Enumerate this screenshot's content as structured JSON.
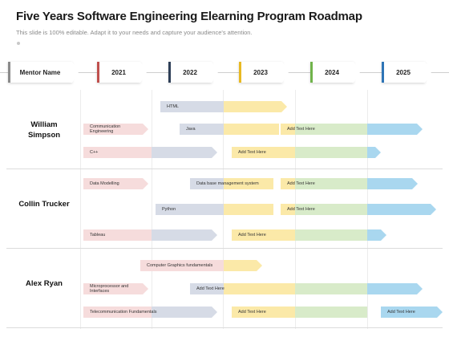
{
  "title": "Five Years Software Engineering Elearning Program Roadmap",
  "subtitle": "This slide is 100% editable. Adapt it to your needs and capture your audience's attention.",
  "colors": {
    "mentor": "#8a8a8a",
    "y2021": "#c0504d",
    "y2022": "#2f4058",
    "y2023": "#e8b923",
    "y2024": "#70b34b",
    "y2025": "#2e75b6"
  },
  "headers": {
    "mentor": "Mentor Name",
    "y2021": "2021",
    "y2022": "2022",
    "y2023": "2023",
    "y2024": "2024",
    "y2025": "2025"
  },
  "mentors": {
    "m1": "William Simpson",
    "m2": "Collin Trucker",
    "m3": "Alex Ryan"
  },
  "bars": {
    "html": "HTML",
    "comm_eng": "Communication Engineering",
    "java": "Java",
    "ath1": "Add Text Here",
    "cpp": "C++",
    "ath2": "Add Text Here",
    "data_modelling": "Data Modelling",
    "dbms": "Data base management system",
    "ath3": "Add Text Here",
    "python": "Python",
    "ath4": "Add Text Here",
    "tableau": "Tableau",
    "ath5": "Add Text Here",
    "cg": "Computer Graphics fundamentals",
    "micro": "Microprocessor and Interfaces",
    "ath6": "Add Text Here",
    "telecom": "Telecommunication Fundamentals",
    "ath7": "Add Text Here",
    "ath8": "Add Text Here"
  }
}
